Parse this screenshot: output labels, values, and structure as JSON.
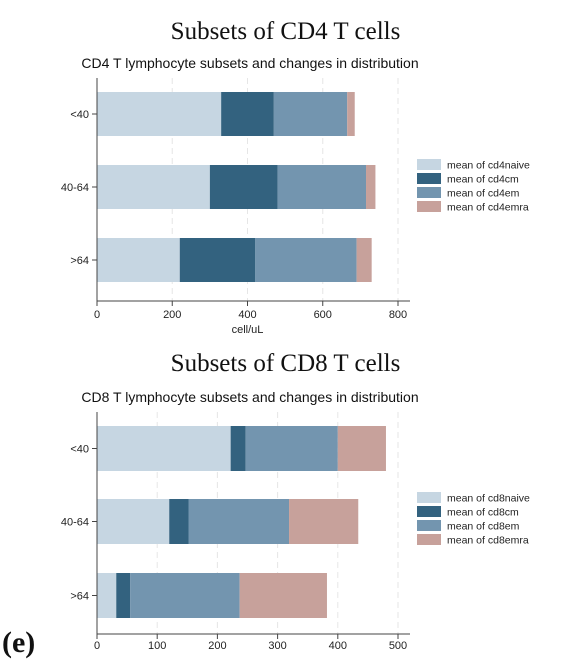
{
  "panel_label": "(e)",
  "chart_data": [
    {
      "type": "bar",
      "orientation": "horizontal",
      "stacked": true,
      "heading": "Subsets of CD4 T cells",
      "title": "CD4 T lymphocyte subsets and changes in distribution",
      "xlabel": "cell/uL",
      "ylabel": "",
      "categories": [
        "<40",
        "40-64",
        ">64"
      ],
      "xlim": [
        0,
        800
      ],
      "xticks": [
        0,
        200,
        400,
        600,
        800
      ],
      "grid": "vertical dashed",
      "legend_position": "right",
      "series": [
        {
          "name": "mean of cd4naive",
          "color": "#c6d6e2",
          "values": [
            330,
            300,
            220
          ]
        },
        {
          "name": "mean of cd4cm",
          "color": "#33627f",
          "values": [
            140,
            180,
            200
          ]
        },
        {
          "name": "mean of cd4em",
          "color": "#7395af",
          "values": [
            195,
            235,
            270
          ]
        },
        {
          "name": "mean of cd4emra",
          "color": "#c7a19b",
          "values": [
            20,
            25,
            40
          ]
        }
      ]
    },
    {
      "type": "bar",
      "orientation": "horizontal",
      "stacked": true,
      "heading": "Subsets of CD8 T cells",
      "title": "CD8 T lymphocyte subsets and changes in distribution",
      "xlabel": "",
      "ylabel": "",
      "categories": [
        "<40",
        "40-64",
        ">64"
      ],
      "xlim": [
        0,
        500
      ],
      "xticks": [
        0,
        100,
        200,
        300,
        400,
        500
      ],
      "grid": "vertical dashed",
      "legend_position": "right",
      "series": [
        {
          "name": "mean of cd8naive",
          "color": "#c6d6e2",
          "values": [
            222,
            120,
            32
          ]
        },
        {
          "name": "mean of cd8cm",
          "color": "#33627f",
          "values": [
            25,
            32,
            23
          ]
        },
        {
          "name": "mean of cd8em",
          "color": "#7395af",
          "values": [
            153,
            167,
            182
          ]
        },
        {
          "name": "mean of cd8emra",
          "color": "#c7a19b",
          "values": [
            80,
            115,
            145
          ]
        }
      ]
    }
  ]
}
